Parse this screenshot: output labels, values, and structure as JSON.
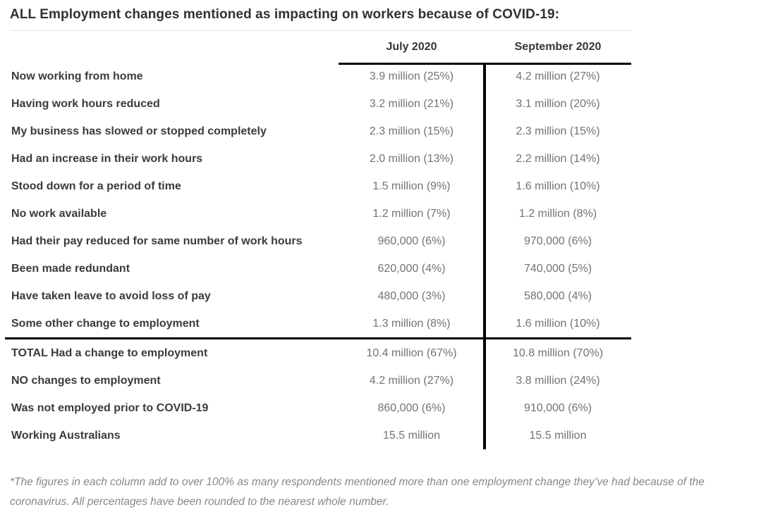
{
  "title": "ALL Employment changes mentioned as impacting on workers because of COVID-19:",
  "columns": [
    "July 2020",
    "September 2020"
  ],
  "rows": [
    {
      "label": "Now working from home",
      "july": "3.9 million (25%)",
      "september": "4.2 million (27%)"
    },
    {
      "label": "Having work hours reduced",
      "july": "3.2 million (21%)",
      "september": "3.1 million (20%)"
    },
    {
      "label": "My business has slowed or stopped completely",
      "july": "2.3 million (15%)",
      "september": "2.3 million (15%)"
    },
    {
      "label": "Had an increase in their work hours",
      "july": "2.0 million (13%)",
      "september": "2.2 million (14%)"
    },
    {
      "label": "Stood down for a period of time",
      "july": "1.5 million (9%)",
      "september": "1.6 million (10%)"
    },
    {
      "label": "No work available",
      "july": "1.2 million (7%)",
      "september": "1.2 million (8%)"
    },
    {
      "label": "Had their pay reduced for same number of work hours",
      "july": "960,000 (6%)",
      "september": "970,000 (6%)"
    },
    {
      "label": "Been made redundant",
      "july": "620,000 (4%)",
      "september": "740,000 (5%)"
    },
    {
      "label": "Have taken leave to avoid loss of pay",
      "july": "480,000 (3%)",
      "september": "580,000 (4%)"
    },
    {
      "label": "Some other change to employment",
      "july": "1.3 million (8%)",
      "september": "1.6 million (10%)"
    }
  ],
  "summary_rows": [
    {
      "label": "TOTAL Had a change to employment",
      "july": "10.4 million (67%)",
      "september": "10.8 million (70%)"
    },
    {
      "label": "NO changes to employment",
      "july": "4.2 million (27%)",
      "september": "3.8 million (24%)"
    },
    {
      "label": "Was not employed prior to COVID-19",
      "july": "860,000 (6%)",
      "september": "910,000 (6%)"
    },
    {
      "label": "Working Australians",
      "july": "15.5 million",
      "september": "15.5 million"
    }
  ],
  "footnote": "*The figures in each column add to over 100% as many respondents mentioned more than one employment change they’ve had because of the coronavirus. All percentages have been rounded to the nearest whole number.",
  "colors": {
    "title_text": "#2e3235",
    "label_text": "#383c3f",
    "value_text": "#6e747b",
    "table_lines": "#000000",
    "title_rule": "#e4e4e4",
    "footnote_text": "#85888b",
    "background": "#ffffff"
  },
  "chart_data": {
    "type": "table",
    "title": "ALL Employment changes mentioned as impacting on workers because of COVID-19:",
    "columns": [
      "",
      "July 2020",
      "September 2020"
    ],
    "categories": [
      "Now working from home",
      "Having work hours reduced",
      "My business has slowed or stopped completely",
      "Had an increase in their work hours",
      "Stood down for a period of time",
      "No work available",
      "Had their pay reduced for same number of work hours",
      "Been made redundant",
      "Have taken leave to avoid loss of pay",
      "Some other change to employment",
      "TOTAL Had a change to employment",
      "NO changes to employment",
      "Was not employed prior to COVID-19",
      "Working Australians"
    ],
    "series": [
      {
        "name": "July 2020",
        "values_millions": [
          3.9,
          3.2,
          2.3,
          2.0,
          1.5,
          1.2,
          0.96,
          0.62,
          0.48,
          1.3,
          10.4,
          4.2,
          0.86,
          15.5
        ],
        "percentages": [
          25,
          21,
          15,
          13,
          9,
          7,
          6,
          4,
          3,
          8,
          67,
          27,
          6,
          null
        ]
      },
      {
        "name": "September 2020",
        "values_millions": [
          4.2,
          3.1,
          2.3,
          2.2,
          1.6,
          1.2,
          0.97,
          0.74,
          0.58,
          1.6,
          10.8,
          3.8,
          0.91,
          15.5
        ],
        "percentages": [
          27,
          20,
          15,
          14,
          10,
          8,
          6,
          5,
          4,
          10,
          70,
          24,
          6,
          null
        ]
      }
    ],
    "annotations": [
      "*The figures in each column add to over 100% as many respondents mentioned more than one employment change they’ve had because of the coronavirus. All percentages have been rounded to the nearest whole number."
    ],
    "layout": {
      "summary_divider_after_row": 10,
      "column_separator": "vertical-black-line",
      "header_underline": "thick-black"
    }
  }
}
